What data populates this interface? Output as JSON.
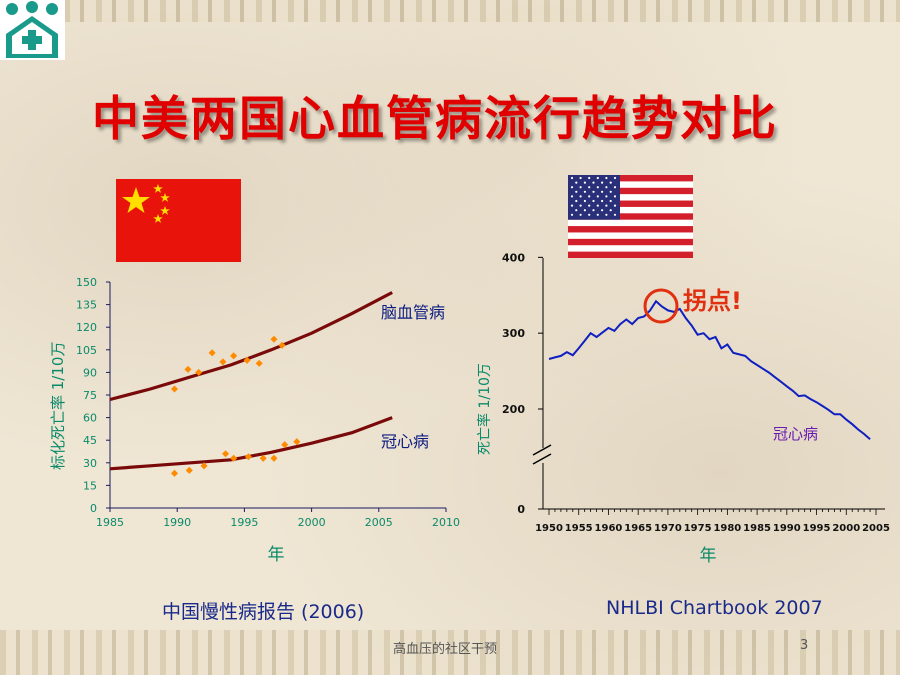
{
  "slide": {
    "title": "中美两国心血管病流行趋势对比",
    "footer_text": "高血压的社区干预",
    "page_number": "3"
  },
  "china_panel": {
    "flag": "china-flag",
    "source": "中国慢性病报告 (2006)",
    "annotation_stroke": "脑血管病",
    "annotation_chd": "冠心病"
  },
  "us_panel": {
    "flag": "us-flag",
    "source": "NHLBI Chartbook 2007",
    "turning_point": "拐点!",
    "annotation_chd": "冠心病"
  },
  "colors": {
    "title": "#e00000",
    "curve": "#7a0a0a",
    "dots": "#ff8a00",
    "us_line": "#1020c0",
    "axis_teal": "#0a8a6a",
    "label_navy": "#0a1a80",
    "turning_point": "#e03010"
  },
  "chart_data": [
    {
      "type": "line",
      "ylabel": "标化死亡率   1/10万",
      "xlabel": "年",
      "y_ticks": [
        "0",
        "15",
        "30",
        "45",
        "60",
        "75",
        "90",
        "105",
        "120",
        "135",
        "150"
      ],
      "x_ticks": [
        "1985",
        "1990",
        "1995",
        "2000",
        "2005",
        "2010"
      ],
      "xlim": [
        1985,
        2010
      ],
      "ylim": [
        0,
        150
      ],
      "series": [
        {
          "name": "脑血管病",
          "x": [
            1985,
            1988,
            1991,
            1994,
            1997,
            2000,
            2003,
            2006
          ],
          "y": [
            72,
            79,
            87,
            95,
            105,
            116,
            129,
            143
          ]
        },
        {
          "name": "冠心病",
          "x": [
            1985,
            1988,
            1991,
            1994,
            1997,
            2000,
            2003,
            2006
          ],
          "y": [
            26,
            28,
            30,
            32,
            37,
            43,
            50,
            60
          ]
        }
      ],
      "scatter": [
        {
          "x": 1989.8,
          "y": 79
        },
        {
          "x": 1990.8,
          "y": 92
        },
        {
          "x": 1991.6,
          "y": 90
        },
        {
          "x": 1992.6,
          "y": 103
        },
        {
          "x": 1993.4,
          "y": 97
        },
        {
          "x": 1994.2,
          "y": 101
        },
        {
          "x": 1995.2,
          "y": 98
        },
        {
          "x": 1996.1,
          "y": 96
        },
        {
          "x": 1997.2,
          "y": 112
        },
        {
          "x": 1997.8,
          "y": 108
        },
        {
          "x": 1989.8,
          "y": 23
        },
        {
          "x": 1990.9,
          "y": 25
        },
        {
          "x": 1992.0,
          "y": 28
        },
        {
          "x": 1993.6,
          "y": 36
        },
        {
          "x": 1994.2,
          "y": 33
        },
        {
          "x": 1995.3,
          "y": 34
        },
        {
          "x": 1996.4,
          "y": 33
        },
        {
          "x": 1997.2,
          "y": 33
        },
        {
          "x": 1998.0,
          "y": 42
        },
        {
          "x": 1998.9,
          "y": 44
        }
      ]
    },
    {
      "type": "line",
      "ylabel": "死亡率   1/10万",
      "xlabel": "年",
      "y_ticks": [
        "0",
        "200",
        "300",
        "400"
      ],
      "x_ticks": [
        "1950",
        "1955",
        "1960",
        "1965",
        "1970",
        "1975",
        "1980",
        "1985",
        "1990",
        "1995",
        "2000",
        "2005"
      ],
      "broken_axis": true,
      "series": [
        {
          "name": "冠心病",
          "x": [
            1950,
            1951,
            1952,
            1953,
            1954,
            1955,
            1956,
            1957,
            1958,
            1959,
            1960,
            1961,
            1962,
            1963,
            1964,
            1965,
            1966,
            1967,
            1968,
            1969,
            1970,
            1971,
            1972,
            1973,
            1974,
            1975,
            1976,
            1977,
            1978,
            1979,
            1980,
            1981,
            1982,
            1983,
            1984,
            1985,
            1986,
            1987,
            1988,
            1989,
            1990,
            1991,
            1992,
            1993,
            1994,
            1995,
            1996,
            1997,
            1998,
            1999,
            2000,
            2001,
            2002,
            2003,
            2004
          ],
          "y": [
            266,
            268,
            270,
            275,
            271,
            280,
            290,
            300,
            295,
            301,
            307,
            303,
            312,
            318,
            312,
            320,
            322,
            330,
            342,
            335,
            330,
            328,
            332,
            320,
            310,
            298,
            300,
            292,
            295,
            280,
            285,
            274,
            272,
            270,
            263,
            258,
            253,
            248,
            242,
            236,
            230,
            224,
            217,
            218,
            213,
            209,
            204,
            199,
            193,
            193,
            186,
            180,
            173,
            167,
            160
          ]
        }
      ]
    }
  ]
}
